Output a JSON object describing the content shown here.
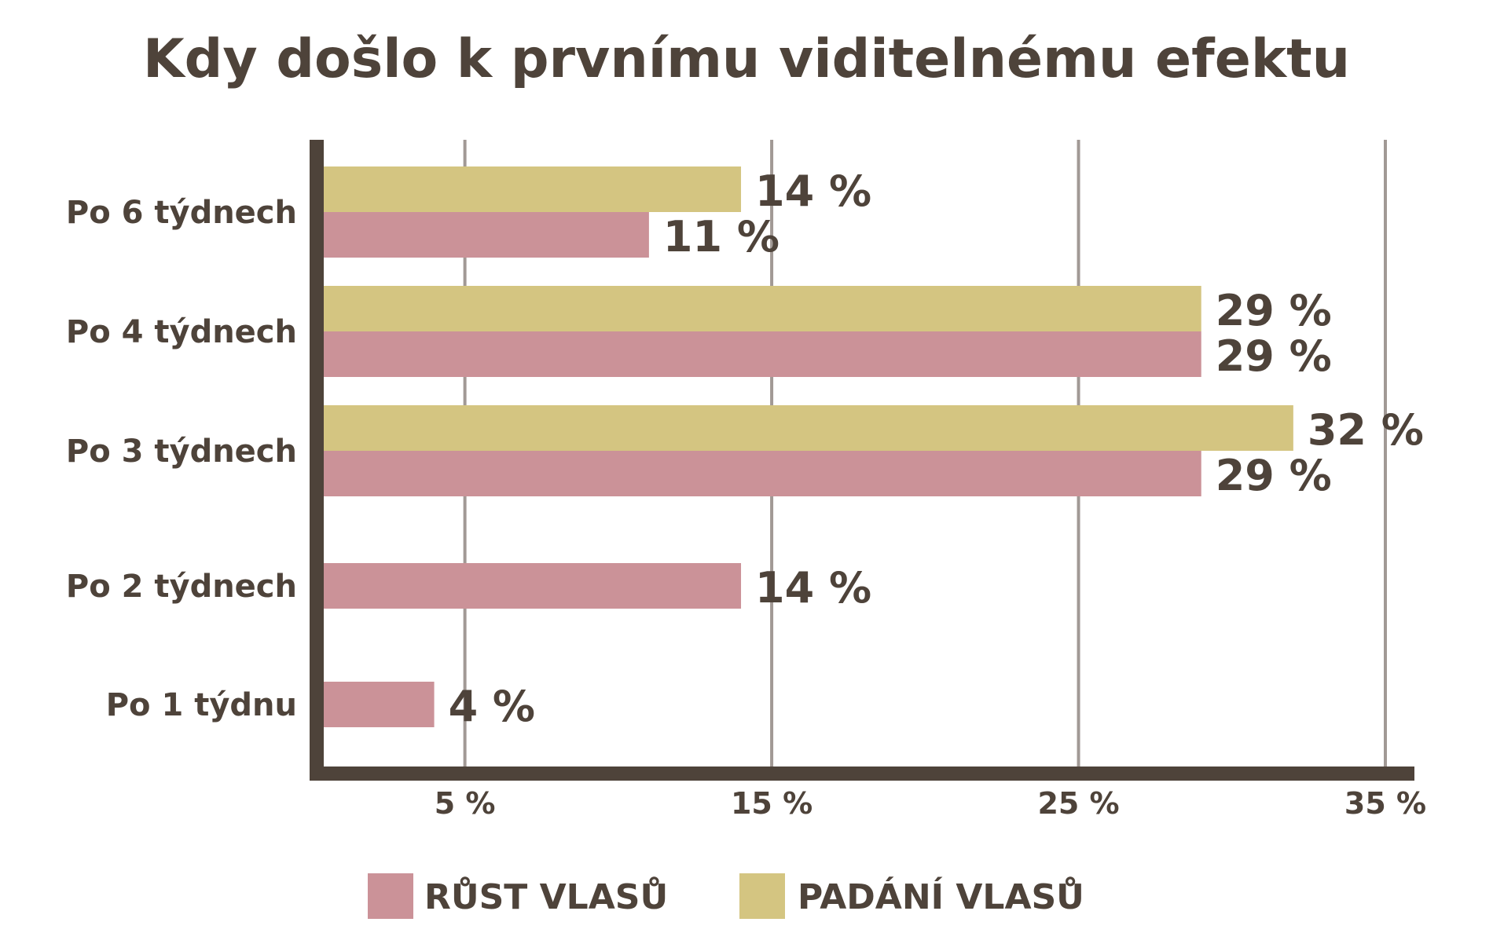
{
  "colors": {
    "text": "#4e433a",
    "axis": "#4e433a",
    "grid": "#a19995",
    "rust": "#cb9298",
    "padani": "#d4c581"
  },
  "chart_data": {
    "type": "bar",
    "orientation": "horizontal",
    "title": "Kdy došlo k prvnímu viditelnému efektu",
    "categories": [
      "Po 6 týdnech",
      "Po 4 týdnech",
      "Po 3 týdnech",
      "Po 2 týdnech",
      "Po 1 týdnu"
    ],
    "series": [
      {
        "name": "PADÁNÍ VLASŮ",
        "color": "#d4c581",
        "values": [
          14,
          29,
          32,
          null,
          null
        ],
        "labels": [
          "14 %",
          "29 %",
          "32 %",
          null,
          null
        ]
      },
      {
        "name": "RŮST VLASŮ",
        "color": "#cb9298",
        "values": [
          11,
          29,
          29,
          14,
          4
        ],
        "labels": [
          "11 %",
          "29 %",
          "29 %",
          "14 %",
          "4 %"
        ]
      }
    ],
    "xlim": [
      0.4,
      35
    ],
    "x_ticks": [
      5,
      15,
      25,
      35
    ],
    "x_tick_labels": [
      "5 %",
      "15 %",
      "25 %",
      "35 %"
    ],
    "grid": "vertical",
    "legend": {
      "position": "bottom",
      "items": [
        {
          "label": "RŮST VLASŮ",
          "color": "#cb9298"
        },
        {
          "label": "PADÁNÍ VLASŮ",
          "color": "#d4c581"
        }
      ]
    }
  }
}
